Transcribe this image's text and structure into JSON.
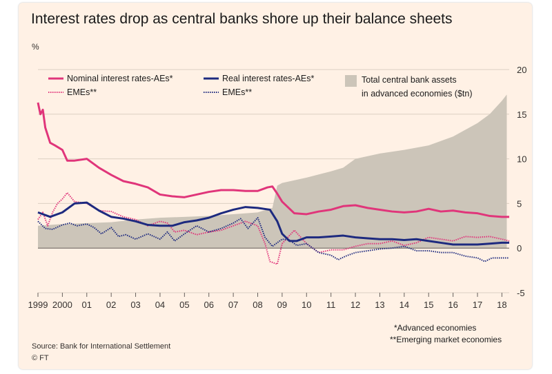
{
  "colors": {
    "background": "#fff1e5",
    "area": "#ccc5b9",
    "nominal": "#e0357a",
    "real": "#1d2a7f",
    "text": "#33302e"
  },
  "header": {
    "title": "Interest rates drop as central banks shore up their balance sheets",
    "unit": "%"
  },
  "footer": {
    "note_ae": "*Advanced economies",
    "note_eme": "**Emerging market economies",
    "source": "Source: Bank for International Settlement",
    "brand": "© FT"
  },
  "chart_data": {
    "type": "line",
    "xlim": [
      1999,
      2018.3
    ],
    "ylim": [
      -5,
      20
    ],
    "y_ticks": [
      -5,
      0,
      5,
      10,
      15,
      20
    ],
    "y_tick_labels": [
      "-5",
      "0",
      "5",
      "10",
      "15",
      "20"
    ],
    "x_ticks": [
      1999,
      2000,
      2001,
      2002,
      2003,
      2004,
      2005,
      2006,
      2007,
      2008,
      2009,
      2010,
      2011,
      2012,
      2013,
      2014,
      2015,
      2016,
      2017,
      2018
    ],
    "x_tick_labels": [
      "1999",
      "2000",
      "01",
      "02",
      "03",
      "04",
      "05",
      "06",
      "07",
      "08",
      "09",
      "10",
      "11",
      "12",
      "13",
      "14",
      "15",
      "16",
      "17",
      "18"
    ],
    "axis_position": "right",
    "grid": "horizontal",
    "legend": [
      {
        "label": "Nominal interest rates-AEs*",
        "style": "solid",
        "color": "#e0357a"
      },
      {
        "label": "EMEs**",
        "style": "dotted",
        "color": "#e0357a"
      },
      {
        "label": "Real interest rates-AEs*",
        "style": "solid",
        "color": "#1d2a7f"
      },
      {
        "label": "EMEs**",
        "style": "dotted",
        "color": "#1d2a7f"
      },
      {
        "label_line1": "Total central bank assets",
        "label_line2": "in advanced economies ($tn)",
        "style": "area",
        "color": "#ccc5b9"
      }
    ],
    "series": [
      {
        "name": "Total central bank assets in advanced economies ($tn)",
        "kind": "area",
        "x": [
          1999,
          2000,
          2001,
          2002,
          2003,
          2004,
          2005,
          2006,
          2007,
          2008,
          2008.6,
          2008.8,
          2009,
          2010,
          2011,
          2011.5,
          2012,
          2013,
          2014,
          2015,
          2016,
          2017,
          2017.5,
          2018,
          2018.2
        ],
        "values": [
          2.5,
          2.7,
          2.8,
          2.9,
          3.2,
          3.4,
          3.5,
          3.6,
          3.8,
          4.0,
          4.5,
          7.0,
          7.3,
          7.9,
          8.6,
          9.0,
          10.0,
          10.6,
          11.0,
          11.5,
          12.5,
          14.0,
          15.0,
          16.5,
          17.2
        ]
      },
      {
        "name": "Nominal interest rates-AEs*",
        "kind": "line",
        "style": "solid",
        "x": [
          1999,
          1999.1,
          1999.2,
          1999.3,
          1999.5,
          1999.7,
          2000,
          2000.2,
          2000.5,
          2001,
          2001.5,
          2002,
          2002.5,
          2003,
          2003.5,
          2004,
          2004.5,
          2005,
          2005.5,
          2006,
          2006.5,
          2007,
          2007.5,
          2008,
          2008.4,
          2008.6,
          2008.8,
          2009,
          2009.5,
          2010,
          2010.5,
          2011,
          2011.5,
          2012,
          2012.5,
          2013,
          2013.5,
          2014,
          2014.5,
          2015,
          2015.5,
          2016,
          2016.5,
          2017,
          2017.5,
          2018,
          2018.3
        ],
        "values": [
          16.3,
          15.0,
          15.5,
          13.5,
          11.8,
          11.5,
          11.0,
          9.8,
          9.8,
          10.0,
          9.0,
          8.2,
          7.5,
          7.2,
          6.8,
          6.0,
          5.8,
          5.7,
          6.0,
          6.3,
          6.5,
          6.5,
          6.4,
          6.4,
          6.8,
          6.9,
          6.1,
          5.2,
          3.9,
          3.8,
          4.1,
          4.3,
          4.7,
          4.8,
          4.5,
          4.3,
          4.1,
          4.0,
          4.1,
          4.4,
          4.1,
          4.2,
          4.0,
          3.9,
          3.6,
          3.5,
          3.5
        ]
      },
      {
        "name": "EMEs**",
        "kind": "line",
        "style": "dotted",
        "color_of": "nominal",
        "x": [
          1999,
          1999.2,
          1999.4,
          1999.6,
          1999.8,
          2000,
          2000.2,
          2000.5,
          2001,
          2001.5,
          2002,
          2002.5,
          2003,
          2003.5,
          2004,
          2004.3,
          2004.6,
          2005,
          2005.5,
          2006,
          2006.5,
          2007,
          2007.5,
          2008,
          2008.3,
          2008.5,
          2008.8,
          2009,
          2009.5,
          2010,
          2010.5,
          2011,
          2011.5,
          2012,
          2012.5,
          2013,
          2013.5,
          2014,
          2014.5,
          2015,
          2015.5,
          2016,
          2016.5,
          2017,
          2017.5,
          2018,
          2018.3
        ],
        "values": [
          3.2,
          4.0,
          2.5,
          4.0,
          5.0,
          5.5,
          6.2,
          5.2,
          5.0,
          4.2,
          4.1,
          3.5,
          3.2,
          2.5,
          3.0,
          2.8,
          1.8,
          2.0,
          1.5,
          1.8,
          2.0,
          2.5,
          3.0,
          2.5,
          0.5,
          -1.5,
          -1.8,
          0.5,
          2.0,
          0.5,
          -0.5,
          -0.2,
          -0.2,
          0.2,
          0.5,
          0.5,
          0.8,
          0.3,
          0.6,
          1.2,
          1.0,
          0.8,
          1.3,
          1.2,
          1.3,
          1.0,
          0.8
        ]
      },
      {
        "name": "Real interest rates-AEs*",
        "kind": "line",
        "style": "solid",
        "x": [
          1999,
          1999.5,
          2000,
          2000.5,
          2001,
          2001.5,
          2002,
          2002.5,
          2003,
          2003.5,
          2004,
          2004.5,
          2005,
          2005.5,
          2006,
          2006.5,
          2007,
          2007.5,
          2008,
          2008.5,
          2008.8,
          2009,
          2009.3,
          2009.6,
          2010,
          2010.5,
          2011,
          2011.5,
          2012,
          2012.5,
          2013,
          2013.5,
          2014,
          2014.5,
          2015,
          2015.5,
          2016,
          2016.5,
          2017,
          2017.5,
          2018,
          2018.3
        ],
        "values": [
          4.0,
          3.5,
          4.0,
          5.0,
          5.1,
          4.2,
          3.5,
          3.3,
          3.0,
          2.6,
          2.5,
          2.5,
          2.9,
          3.1,
          3.4,
          3.9,
          4.3,
          4.6,
          4.5,
          4.3,
          3.0,
          1.6,
          0.8,
          0.8,
          1.2,
          1.2,
          1.3,
          1.4,
          1.2,
          1.1,
          1.0,
          1.0,
          0.9,
          1.0,
          0.8,
          0.6,
          0.4,
          0.4,
          0.4,
          0.5,
          0.6,
          0.6
        ]
      },
      {
        "name": "EMEs**",
        "kind": "line",
        "style": "dotted",
        "color_of": "real",
        "x": [
          1999,
          1999.3,
          1999.6,
          2000,
          2000.3,
          2000.6,
          2001,
          2001.3,
          2001.6,
          2002,
          2002.3,
          2002.6,
          2003,
          2003.5,
          2004,
          2004.3,
          2004.6,
          2005,
          2005.5,
          2006,
          2006.5,
          2007,
          2007.3,
          2007.6,
          2008,
          2008.3,
          2008.6,
          2009,
          2009.3,
          2009.6,
          2010,
          2010.5,
          2011,
          2011.3,
          2011.6,
          2012,
          2012.5,
          2013,
          2013.5,
          2014,
          2014.5,
          2015,
          2015.5,
          2016,
          2016.5,
          2017,
          2017.3,
          2017.6,
          2018,
          2018.3
        ],
        "values": [
          3.0,
          2.2,
          2.1,
          2.6,
          2.8,
          2.5,
          2.7,
          2.3,
          1.6,
          2.3,
          1.3,
          1.5,
          1.0,
          1.6,
          1.0,
          1.8,
          0.8,
          1.6,
          2.5,
          1.8,
          2.2,
          2.8,
          3.3,
          2.2,
          3.4,
          1.2,
          0.2,
          1.0,
          0.9,
          0.3,
          0.5,
          -0.5,
          -0.8,
          -1.3,
          -0.9,
          -0.5,
          -0.3,
          -0.1,
          0.0,
          0.2,
          -0.3,
          -0.3,
          -0.5,
          -0.5,
          -0.9,
          -1.1,
          -1.5,
          -1.1,
          -1.1,
          -1.1
        ]
      }
    ]
  }
}
